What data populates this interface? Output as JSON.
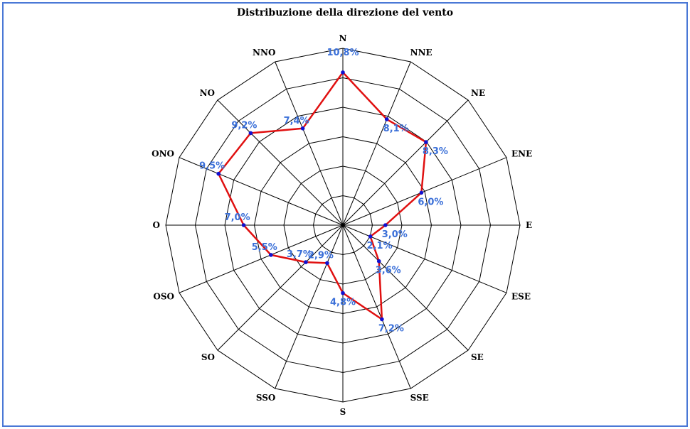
{
  "chart_data": {
    "type": "radar",
    "title": "Distribuzione della direzione del vento",
    "categories": [
      "N",
      "NNE",
      "NE",
      "ENE",
      "E",
      "ESE",
      "SE",
      "SSE",
      "S",
      "SSO",
      "SO",
      "OSO",
      "O",
      "ONO",
      "NO",
      "NNO"
    ],
    "values": [
      10.8,
      8.1,
      8.3,
      6.0,
      3.0,
      2.1,
      3.6,
      7.2,
      4.8,
      2.9,
      3.7,
      5.5,
      7.0,
      9.5,
      9.2,
      7.4
    ],
    "value_labels": [
      "10,8%",
      "8,1%",
      "8,3%",
      "6,0%",
      "3,0%",
      "2,1%",
      "3,6%",
      "7,2%",
      "4,8%",
      "2,9%",
      "3,7%",
      "5,5%",
      "7,0%",
      "9,5%",
      "9,2%",
      "7,4%"
    ],
    "rlim": [
      0,
      12.5
    ],
    "ring_count": 6,
    "grid": true,
    "colors": {
      "series_line": "#e01010",
      "series_point": "#1010d0",
      "value_text": "#3a6fd8",
      "frame": "#4a78d6"
    }
  }
}
